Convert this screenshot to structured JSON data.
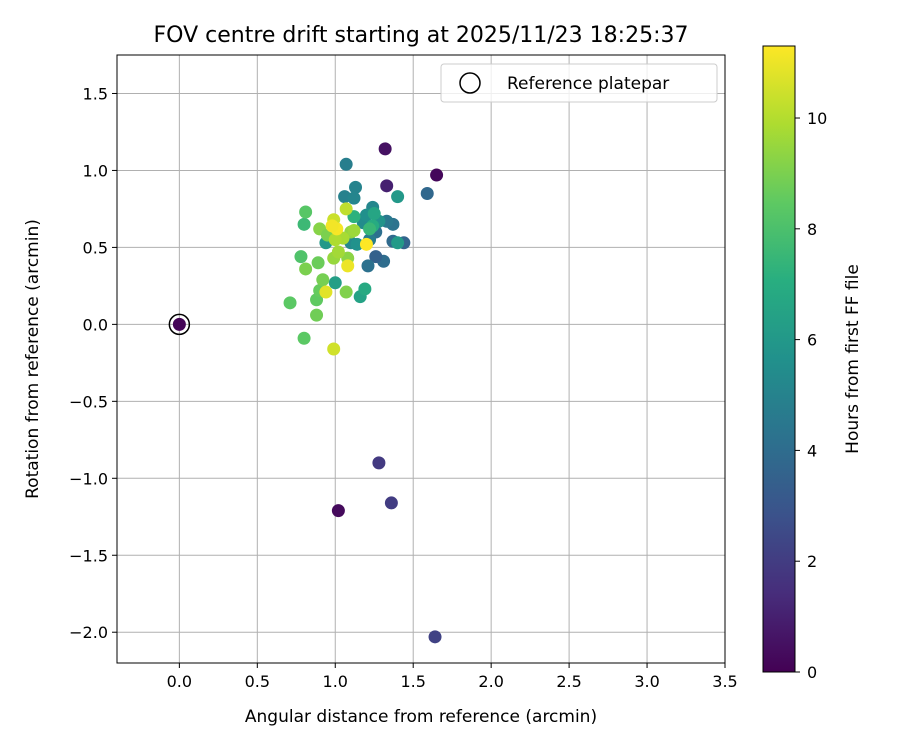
{
  "chart_data": {
    "type": "scatter",
    "title": "FOV centre drift starting at 2025/11/23 18:25:37",
    "xlabel": "Angular distance from reference (arcmin)",
    "ylabel": "Rotation from reference (arcmin)",
    "xlim": [
      -0.4,
      3.5
    ],
    "ylim": [
      -2.2,
      1.75
    ],
    "xticks": [
      0.0,
      0.5,
      1.0,
      1.5,
      2.0,
      2.5,
      3.0,
      3.5
    ],
    "xtick_labels": [
      "0.0",
      "0.5",
      "1.0",
      "1.5",
      "2.0",
      "2.5",
      "3.0",
      "3.5"
    ],
    "yticks": [
      -2.0,
      -1.5,
      -1.0,
      -0.5,
      0.0,
      0.5,
      1.0,
      1.5
    ],
    "ytick_labels": [
      "−2.0",
      "−1.5",
      "−1.0",
      "−0.5",
      "0.0",
      "0.5",
      "1.0",
      "1.5"
    ],
    "grid": true,
    "legend": {
      "position": "top-right",
      "entries": [
        "Reference platepar"
      ]
    },
    "colorbar": {
      "label": "Hours from first FF file",
      "range": [
        0,
        11.3
      ],
      "ticks": [
        0,
        2,
        4,
        6,
        8,
        10
      ],
      "tick_labels": [
        "0",
        "2",
        "4",
        "6",
        "8",
        "10"
      ],
      "colormap": "viridis"
    },
    "reference_point": {
      "x": 0.0,
      "y": 0.0
    },
    "points": [
      {
        "x": 0.0,
        "y": 0.0,
        "h": 0.1
      },
      {
        "x": 1.65,
        "y": 0.97,
        "h": 0.2
      },
      {
        "x": 1.32,
        "y": 1.14,
        "h": 0.5
      },
      {
        "x": 1.33,
        "y": 0.9,
        "h": 1.0
      },
      {
        "x": 1.02,
        "y": -1.21,
        "h": 0.3
      },
      {
        "x": 1.28,
        "y": -0.9,
        "h": 1.9
      },
      {
        "x": 1.36,
        "y": -1.16,
        "h": 2.0
      },
      {
        "x": 1.64,
        "y": -2.03,
        "h": 2.2
      },
      {
        "x": 1.59,
        "y": 0.85,
        "h": 3.8
      },
      {
        "x": 1.44,
        "y": 0.53,
        "h": 3.6
      },
      {
        "x": 1.37,
        "y": 0.54,
        "h": 3.9
      },
      {
        "x": 1.31,
        "y": 0.41,
        "h": 4.0
      },
      {
        "x": 1.26,
        "y": 0.44,
        "h": 3.5
      },
      {
        "x": 1.21,
        "y": 0.38,
        "h": 4.2
      },
      {
        "x": 1.37,
        "y": 0.65,
        "h": 4.3
      },
      {
        "x": 1.33,
        "y": 0.67,
        "h": 4.5
      },
      {
        "x": 1.26,
        "y": 0.6,
        "h": 4.1
      },
      {
        "x": 1.22,
        "y": 0.55,
        "h": 4.7
      },
      {
        "x": 1.07,
        "y": 1.04,
        "h": 4.8
      },
      {
        "x": 1.13,
        "y": 0.89,
        "h": 5.0
      },
      {
        "x": 1.06,
        "y": 0.83,
        "h": 4.9
      },
      {
        "x": 1.12,
        "y": 0.82,
        "h": 5.1
      },
      {
        "x": 1.24,
        "y": 0.76,
        "h": 5.2
      },
      {
        "x": 1.18,
        "y": 0.66,
        "h": 5.4
      },
      {
        "x": 1.2,
        "y": 0.71,
        "h": 5.6
      },
      {
        "x": 1.1,
        "y": 0.53,
        "h": 5.3
      },
      {
        "x": 1.14,
        "y": 0.52,
        "h": 5.7
      },
      {
        "x": 1.28,
        "y": 0.67,
        "h": 5.8
      },
      {
        "x": 1.4,
        "y": 0.83,
        "h": 6.0
      },
      {
        "x": 1.4,
        "y": 0.53,
        "h": 6.1
      },
      {
        "x": 0.94,
        "y": 0.53,
        "h": 6.0
      },
      {
        "x": 1.0,
        "y": 0.27,
        "h": 6.3
      },
      {
        "x": 1.16,
        "y": 0.18,
        "h": 6.5
      },
      {
        "x": 1.19,
        "y": 0.23,
        "h": 6.8
      },
      {
        "x": 1.25,
        "y": 0.72,
        "h": 6.6
      },
      {
        "x": 1.24,
        "y": 0.64,
        "h": 6.9
      },
      {
        "x": 1.12,
        "y": 0.7,
        "h": 7.2
      },
      {
        "x": 1.22,
        "y": 0.62,
        "h": 7.5
      },
      {
        "x": 0.8,
        "y": 0.65,
        "h": 7.6
      },
      {
        "x": 0.78,
        "y": 0.44,
        "h": 8.1
      },
      {
        "x": 0.81,
        "y": 0.73,
        "h": 8.3
      },
      {
        "x": 0.71,
        "y": 0.14,
        "h": 8.4
      },
      {
        "x": 0.88,
        "y": 0.16,
        "h": 8.5
      },
      {
        "x": 0.9,
        "y": 0.22,
        "h": 8.6
      },
      {
        "x": 0.8,
        "y": -0.09,
        "h": 8.4
      },
      {
        "x": 0.88,
        "y": 0.06,
        "h": 8.8
      },
      {
        "x": 0.92,
        "y": 0.29,
        "h": 8.9
      },
      {
        "x": 0.89,
        "y": 0.4,
        "h": 8.7
      },
      {
        "x": 0.81,
        "y": 0.36,
        "h": 9.0
      },
      {
        "x": 0.9,
        "y": 0.62,
        "h": 9.2
      },
      {
        "x": 0.95,
        "y": 0.58,
        "h": 9.0
      },
      {
        "x": 1.07,
        "y": 0.21,
        "h": 9.1
      },
      {
        "x": 1.08,
        "y": 0.43,
        "h": 9.3
      },
      {
        "x": 0.99,
        "y": 0.43,
        "h": 9.5
      },
      {
        "x": 1.02,
        "y": 0.47,
        "h": 9.7
      },
      {
        "x": 1.1,
        "y": 0.6,
        "h": 9.4
      },
      {
        "x": 1.12,
        "y": 0.61,
        "h": 9.6
      },
      {
        "x": 1.05,
        "y": 0.56,
        "h": 9.8
      },
      {
        "x": 1.0,
        "y": 0.55,
        "h": 9.9
      },
      {
        "x": 1.07,
        "y": 0.75,
        "h": 10.2
      },
      {
        "x": 0.99,
        "y": 0.68,
        "h": 10.4
      },
      {
        "x": 0.99,
        "y": -0.16,
        "h": 10.5
      },
      {
        "x": 0.94,
        "y": 0.21,
        "h": 10.8
      },
      {
        "x": 1.08,
        "y": 0.38,
        "h": 11.0
      },
      {
        "x": 1.01,
        "y": 0.62,
        "h": 11.2
      },
      {
        "x": 1.2,
        "y": 0.52,
        "h": 11.3
      },
      {
        "x": 0.98,
        "y": 0.64,
        "h": 11.1
      }
    ]
  }
}
